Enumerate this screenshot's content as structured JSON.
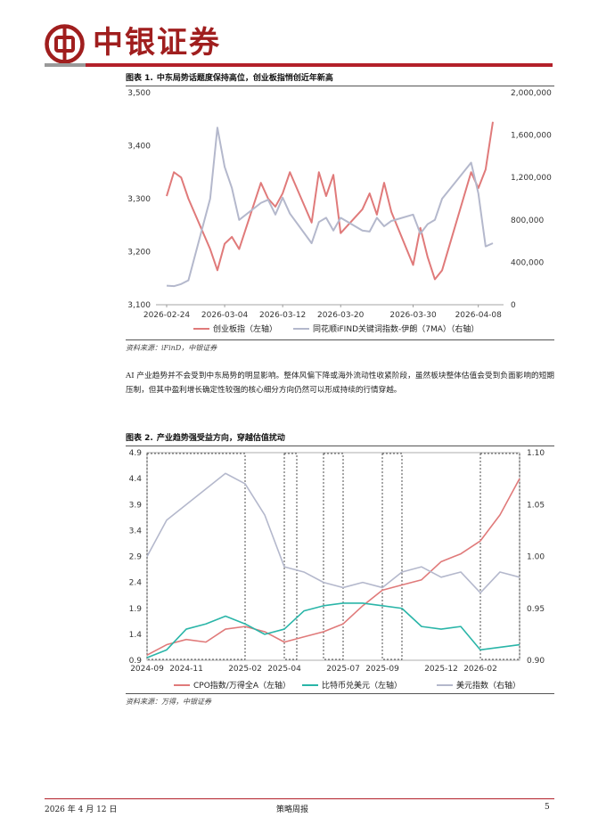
{
  "header": {
    "brand": "中银证券"
  },
  "figure1": {
    "label": "图表 1.",
    "title": "中东局势话题度保持高位，创业板指悄创近年新高",
    "source": "资料来源：iFinD，中银证券"
  },
  "paragraph": "AI 产业趋势并不会受到中东局势的明显影响。整体风偏下降或海外流动性收紧阶段，虽然板块整体估值会受到负面影响的短期压制，但其中盈利增长确定性较强的核心细分方向仍然可以形成持续的行情穿越。",
  "figure2": {
    "label": "图表 2.",
    "title": "产业趋势强受益方向，穿越估值扰动",
    "source": "资料来源：万得，中银证券"
  },
  "footer": {
    "date": "2026 年 4 月 12 日",
    "report": "策略周报",
    "page": "5"
  },
  "colors": {
    "brand_red": "#b3202a",
    "red": "#e07a7a",
    "lavender": "#b4b8cc",
    "teal": "#2ab5a8"
  },
  "chart_data": [
    {
      "type": "line",
      "title": "中东局势话题度保持高位，创业板指悄创近年新高",
      "x": [
        "2026-02-24",
        "2026-02-25",
        "2026-02-26",
        "2026-02-27",
        "2026-03-02",
        "2026-03-03",
        "2026-03-04",
        "2026-03-05",
        "2026-03-06",
        "2026-03-09",
        "2026-03-10",
        "2026-03-11",
        "2026-03-12",
        "2026-03-13",
        "2026-03-16",
        "2026-03-17",
        "2026-03-18",
        "2026-03-19",
        "2026-03-20",
        "2026-03-23",
        "2026-03-24",
        "2026-03-25",
        "2026-03-26",
        "2026-03-27",
        "2026-03-30",
        "2026-03-31",
        "2026-04-01",
        "2026-04-02",
        "2026-04-03",
        "2026-04-07",
        "2026-04-08",
        "2026-04-09",
        "2026-04-10"
      ],
      "x_ticks": [
        "2026-02-24",
        "2026-03-04",
        "2026-03-12",
        "2026-03-20",
        "2026-03-30",
        "2026-04-08"
      ],
      "y_left": {
        "ticks": [
          "3,100",
          "3,200",
          "3,300",
          "3,400",
          "3,500"
        ],
        "lim": [
          3100,
          3500
        ]
      },
      "y_right": {
        "ticks": [
          "0",
          "400,000",
          "800,000",
          "1,200,000",
          "1,600,000",
          "2,000,000"
        ],
        "lim": [
          0,
          2000000
        ]
      },
      "legend_position": "bottom",
      "series": [
        {
          "name": "创业板指（左轴）",
          "axis": "left",
          "color": "#e07a7a",
          "values": [
            3305,
            3350,
            3340,
            3300,
            3205,
            3165,
            3215,
            3228,
            3205,
            3330,
            3300,
            3285,
            3310,
            3350,
            3255,
            3350,
            3305,
            3345,
            3235,
            3280,
            3310,
            3270,
            3330,
            3275,
            3175,
            3245,
            3190,
            3148,
            3165,
            3350,
            3320,
            3355,
            3445
          ]
        },
        {
          "name": "同花顺iFIND关键词指数-伊朗（7MA）（右轴）",
          "axis": "right",
          "color": "#b4b8cc",
          "values": [
            180000,
            175000,
            195000,
            230000,
            1000000,
            1670000,
            1300000,
            1100000,
            800000,
            960000,
            990000,
            850000,
            1010000,
            860000,
            580000,
            780000,
            820000,
            700000,
            820000,
            700000,
            690000,
            820000,
            740000,
            790000,
            850000,
            670000,
            760000,
            800000,
            1000000,
            1340000,
            1050000,
            550000,
            580000
          ]
        }
      ]
    },
    {
      "type": "line",
      "title": "产业趋势强受益方向，穿越估值扰动",
      "x_ticks": [
        "2024-09",
        "2024-11",
        "2025-02",
        "2025-04",
        "2025-07",
        "2025-09",
        "2025-12",
        "2026-02"
      ],
      "y_left": {
        "ticks": [
          "0.9",
          "1.4",
          "1.9",
          "2.4",
          "2.9",
          "3.4",
          "3.9",
          "4.4",
          "4.9"
        ],
        "lim": [
          0.9,
          4.9
        ]
      },
      "y_right": {
        "ticks": [
          "0.90",
          "0.95",
          "1.00",
          "1.05",
          "1.10"
        ],
        "lim": [
          0.9,
          1.1
        ]
      },
      "highlight_periods": [
        [
          "2024-09",
          "2025-02"
        ],
        [
          "2025-04",
          "2025-04"
        ],
        [
          "2025-06",
          "2025-07"
        ],
        [
          "2025-09",
          "2025-10"
        ],
        [
          "2026-02",
          "2026-04"
        ]
      ],
      "legend_position": "bottom",
      "series": [
        {
          "name": "CPO指数/万得全A（左轴）",
          "axis": "left",
          "color": "#e07a7a",
          "points": [
            [
              "2024-09",
              1.0
            ],
            [
              "2024-10",
              1.2
            ],
            [
              "2024-11",
              1.3
            ],
            [
              "2024-12",
              1.25
            ],
            [
              "2025-01",
              1.5
            ],
            [
              "2025-02",
              1.55
            ],
            [
              "2025-03",
              1.45
            ],
            [
              "2025-04",
              1.25
            ],
            [
              "2025-05",
              1.35
            ],
            [
              "2025-06",
              1.45
            ],
            [
              "2025-07",
              1.6
            ],
            [
              "2025-08",
              1.95
            ],
            [
              "2025-09",
              2.25
            ],
            [
              "2025-10",
              2.35
            ],
            [
              "2025-11",
              2.45
            ],
            [
              "2025-12",
              2.8
            ],
            [
              "2026-01",
              2.95
            ],
            [
              "2026-02",
              3.2
            ],
            [
              "2026-03",
              3.7
            ],
            [
              "2026-04",
              4.4
            ]
          ]
        },
        {
          "name": "比特币兑美元（左轴）",
          "axis": "left",
          "color": "#2ab5a8",
          "points": [
            [
              "2024-09",
              0.95
            ],
            [
              "2024-10",
              1.1
            ],
            [
              "2024-11",
              1.5
            ],
            [
              "2024-12",
              1.6
            ],
            [
              "2025-01",
              1.75
            ],
            [
              "2025-02",
              1.6
            ],
            [
              "2025-03",
              1.4
            ],
            [
              "2025-04",
              1.5
            ],
            [
              "2025-05",
              1.85
            ],
            [
              "2025-06",
              1.95
            ],
            [
              "2025-07",
              2.0
            ],
            [
              "2025-08",
              2.0
            ],
            [
              "2025-09",
              1.95
            ],
            [
              "2025-10",
              1.9
            ],
            [
              "2025-11",
              1.55
            ],
            [
              "2025-12",
              1.5
            ],
            [
              "2026-01",
              1.55
            ],
            [
              "2026-02",
              1.1
            ],
            [
              "2026-03",
              1.15
            ],
            [
              "2026-04",
              1.2
            ]
          ]
        },
        {
          "name": "美元指数（右轴）",
          "axis": "right",
          "color": "#b4b8cc",
          "points": [
            [
              "2024-09",
              1.0
            ],
            [
              "2024-10",
              1.035
            ],
            [
              "2024-11",
              1.05
            ],
            [
              "2024-12",
              1.065
            ],
            [
              "2025-01",
              1.08
            ],
            [
              "2025-02",
              1.07
            ],
            [
              "2025-03",
              1.04
            ],
            [
              "2025-04",
              0.99
            ],
            [
              "2025-05",
              0.985
            ],
            [
              "2025-06",
              0.975
            ],
            [
              "2025-07",
              0.97
            ],
            [
              "2025-08",
              0.975
            ],
            [
              "2025-09",
              0.97
            ],
            [
              "2025-10",
              0.985
            ],
            [
              "2025-11",
              0.99
            ],
            [
              "2025-12",
              0.98
            ],
            [
              "2026-01",
              0.985
            ],
            [
              "2026-02",
              0.965
            ],
            [
              "2026-03",
              0.985
            ],
            [
              "2026-04",
              0.98
            ]
          ]
        }
      ]
    }
  ]
}
